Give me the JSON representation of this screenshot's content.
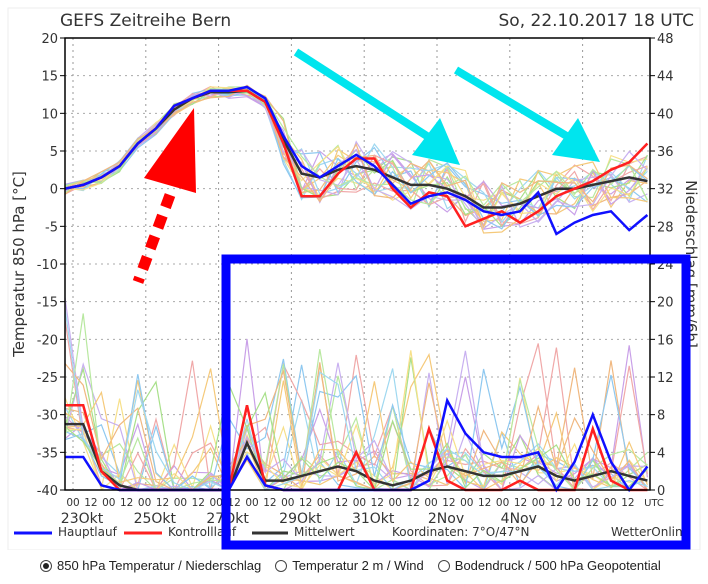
{
  "header": {
    "title": "GEFS Zeitreihe Bern",
    "datetime": "So, 22.10.2017 18 UTC"
  },
  "chart_data": {
    "type": "line",
    "title": "GEFS Zeitreihe Bern",
    "ylabel": "Temperatur 850 hPa [°C]",
    "y2label": "Niederschlag [mm/6h]",
    "ylim": [
      -40,
      20
    ],
    "y2lim": [
      0,
      48
    ],
    "yticks": [
      "20",
      "15",
      "10",
      "5",
      "0",
      "-5",
      "-10",
      "-15",
      "-20",
      "-25",
      "-30",
      "-35",
      "-40"
    ],
    "y2ticks": [
      "48",
      "44",
      "40",
      "36",
      "32",
      "28",
      "24",
      "20",
      "16",
      "12",
      "8",
      "4",
      "0"
    ],
    "xtick_hours": [
      "00",
      "12",
      "00",
      "12",
      "00",
      "12",
      "00",
      "12",
      "00",
      "12",
      "00",
      "12",
      "00",
      "12",
      "00",
      "12",
      "00",
      "12",
      "00",
      "12",
      "00",
      "12",
      "00",
      "12",
      "00",
      "12",
      "00",
      "12",
      "00",
      "12",
      "00",
      "12",
      "UTC"
    ],
    "date_labels": [
      "23Okt",
      "25Okt",
      "27Okt",
      "29Okt",
      "31Okt",
      "2Nov",
      "4Nov"
    ],
    "time_step_hours": 12,
    "temperature": {
      "Hauptlauf": [
        0,
        0.5,
        1.5,
        3,
        6,
        8,
        11,
        12,
        13,
        13,
        13.5,
        12,
        7,
        3,
        1.5,
        3,
        4.5,
        3,
        0.5,
        -2,
        -1,
        -0.5,
        -1.5,
        -3,
        -3.5,
        -3,
        -0.5,
        -6,
        -4.5,
        -3.5,
        -3,
        -5.5,
        -3.5
      ],
      "Kontrolllauf": [
        0,
        0.5,
        1.5,
        3,
        6,
        8,
        11,
        12,
        13,
        13,
        13,
        11.5,
        6,
        -1,
        -1,
        2,
        4,
        4,
        0,
        -2.5,
        -0.5,
        -1,
        -5,
        -4,
        -3,
        -4.5,
        -3,
        -1,
        0,
        1,
        2.5,
        3.5,
        6
      ],
      "Mittelwert": [
        0,
        0.5,
        1.5,
        3,
        6,
        8,
        10.5,
        12,
        12.8,
        12.8,
        13,
        11.5,
        6.5,
        2,
        1.5,
        2.5,
        3,
        2.5,
        1.5,
        0.5,
        0.5,
        0,
        -1,
        -2.5,
        -2.5,
        -2,
        -1,
        0,
        0,
        0.5,
        1,
        1.5,
        1
      ]
    },
    "precipitation": {
      "Hauptlauf": [
        3.5,
        3.5,
        0.5,
        0,
        0,
        0,
        0,
        0,
        0,
        0,
        3.5,
        0.5,
        0,
        0,
        0,
        0,
        0,
        0,
        0,
        0,
        1,
        9.5,
        6,
        4,
        3.5,
        3.5,
        4,
        0,
        3,
        8,
        3,
        0,
        2.5
      ],
      "Kontrolllauf": [
        9,
        9,
        2,
        0,
        0,
        0,
        0,
        0,
        0,
        0,
        9,
        0.5,
        0,
        0,
        0,
        0,
        4,
        0,
        0,
        0,
        6.5,
        1,
        0,
        0,
        0,
        1,
        0,
        0,
        0,
        6.5,
        1,
        0,
        0
      ],
      "Mittelwert": [
        7,
        7,
        2,
        0.5,
        0,
        0,
        0,
        0,
        0,
        0,
        5,
        1,
        1,
        1.5,
        2,
        2.5,
        2,
        1,
        0.5,
        1,
        2,
        2.5,
        2,
        1.5,
        1.5,
        2,
        2.5,
        1.5,
        1,
        1.5,
        2,
        1.5,
        1
      ]
    },
    "series_colors": {
      "Hauptlauf": "#1010ff",
      "Kontrolllauf": "#ff2020",
      "Mittelwert": "#333333"
    }
  },
  "legend": {
    "hauptlauf": "Hauptlauf",
    "kontrolllauf": "Kontrolllauf",
    "mittelwert": "Mittelwert",
    "coords": "Koordinaten: 7°O/47°N",
    "brand": "WetterOnline"
  },
  "annotations": {
    "highlight_box_color": "#0000ff",
    "arrow_up_color": "#ff0000",
    "arrow_down_color": "#00e5ee"
  },
  "options": [
    {
      "label": "850 hPa Temperatur / Niederschlag",
      "selected": true
    },
    {
      "label": "Temperatur 2 m / Wind",
      "selected": false
    },
    {
      "label": "Bodendruck / 500 hPa Geopotential",
      "selected": false
    }
  ]
}
